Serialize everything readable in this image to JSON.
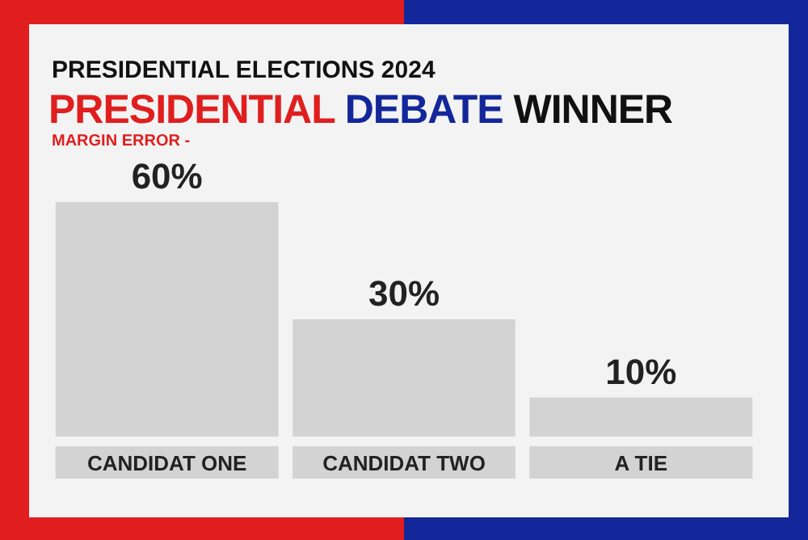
{
  "chart_data": {
    "type": "bar",
    "subtitle": "PRESIDENTIAL ELECTIONS 2024",
    "title": "PRESIDENTIAL DEBATE WINNER",
    "annotations": [
      "MARGIN ERROR -"
    ],
    "categories": [
      "CANDIDAT ONE",
      "CANDIDAT TWO",
      "A TIE"
    ],
    "values": [
      60,
      30,
      10
    ],
    "value_labels": [
      "60%",
      "30%",
      "10%"
    ],
    "color": "#d3d3d3"
  }
}
